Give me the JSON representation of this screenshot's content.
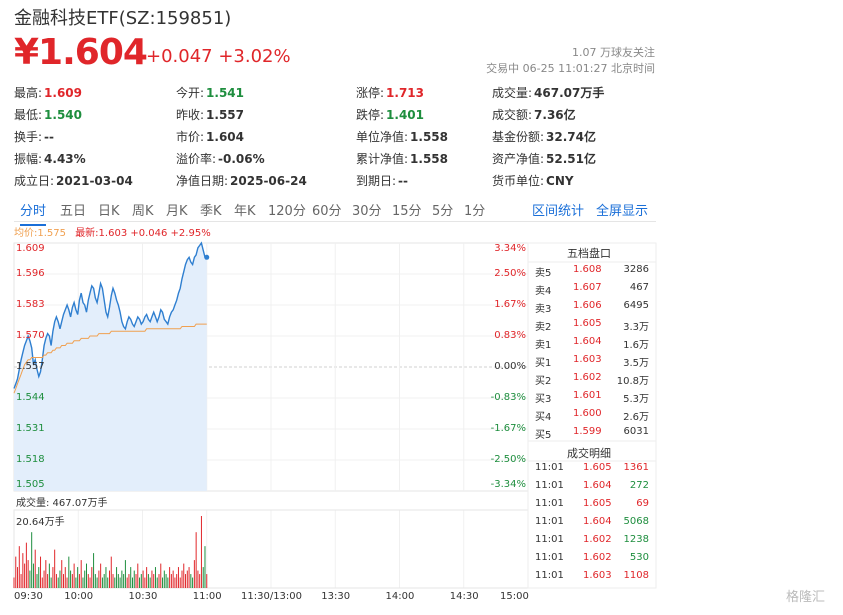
{
  "header": {
    "title": "金融科技ETF(SZ:159851)",
    "price": "¥1.604",
    "change": "+0.047  +3.02%",
    "followers": "1.07 万球友关注",
    "status": "交易中  06-25 11:01:27 北京时间"
  },
  "stats": [
    {
      "label": "最高:",
      "value": "1.609",
      "color": "red"
    },
    {
      "label": "今开:",
      "value": "1.541",
      "color": "green"
    },
    {
      "label": "涨停:",
      "value": "1.713",
      "color": "red"
    },
    {
      "label": "成交量:",
      "value": "467.07万手",
      "color": "normal"
    },
    {
      "label": "最低:",
      "value": "1.540",
      "color": "green"
    },
    {
      "label": "昨收:",
      "value": "1.557",
      "color": "normal"
    },
    {
      "label": "跌停:",
      "value": "1.401",
      "color": "green"
    },
    {
      "label": "成交额:",
      "value": "7.36亿",
      "color": "normal"
    },
    {
      "label": "换手:",
      "value": "--",
      "color": "normal"
    },
    {
      "label": "市价:",
      "value": "1.604",
      "color": "normal"
    },
    {
      "label": "单位净值:",
      "value": "1.558",
      "color": "normal"
    },
    {
      "label": "基金份额:",
      "value": "32.74亿",
      "color": "normal"
    },
    {
      "label": "振幅:",
      "value": "4.43%",
      "color": "normal"
    },
    {
      "label": "溢价率:",
      "value": "-0.06%",
      "color": "normal"
    },
    {
      "label": "累计净值:",
      "value": "1.558",
      "color": "normal"
    },
    {
      "label": "资产净值:",
      "value": "52.51亿",
      "color": "normal"
    },
    {
      "label": "成立日:",
      "value": "2021-03-04",
      "color": "normal"
    },
    {
      "label": "净值日期:",
      "value": "2025-06-24",
      "color": "normal"
    },
    {
      "label": "到期日:",
      "value": "--",
      "color": "normal"
    },
    {
      "label": "货币单位:",
      "value": "CNY",
      "color": "normal"
    }
  ],
  "tabs": [
    "分时",
    "五日",
    "日K",
    "周K",
    "月K",
    "季K",
    "年K",
    "120分",
    "60分",
    "30分",
    "15分",
    "5分",
    "1分"
  ],
  "active_tab": "分时",
  "tab_links": [
    "区间统计",
    "全屏显示"
  ],
  "legend": {
    "avg": "均价:1.575",
    "latest": "最新:1.603 +0.046 +2.95%"
  },
  "chart_data": {
    "type": "line",
    "price_axis": [
      "1.609",
      "1.596",
      "1.583",
      "1.570",
      "1.557",
      "1.544",
      "1.531",
      "1.518",
      "1.505"
    ],
    "pct_axis": [
      "3.34%",
      "2.50%",
      "1.67%",
      "0.83%",
      "0.00%",
      "-0.83%",
      "-1.67%",
      "-2.50%",
      "-3.34%"
    ],
    "ylim": [
      1.505,
      1.609
    ],
    "prev_close": 1.557,
    "volume_label": "成交量: 467.07万手",
    "volume_max_label": "20.64万手",
    "volume_max": 20.64,
    "time_axis": [
      "09:30",
      "10:00",
      "10:30",
      "11:00",
      "11:30/13:00",
      "13:30",
      "14:00",
      "14:30",
      "15:00"
    ],
    "series": [
      {
        "name": "最新",
        "color": "#2f7fd0",
        "values": [
          1.548,
          1.55,
          1.552,
          1.556,
          1.56,
          1.563,
          1.566,
          1.568,
          1.57,
          1.568,
          1.565,
          1.558,
          1.56,
          1.556,
          1.553,
          1.555,
          1.56,
          1.566,
          1.569,
          1.571,
          1.57,
          1.566,
          1.572,
          1.576,
          1.578,
          1.576,
          1.573,
          1.576,
          1.579,
          1.581,
          1.583,
          1.581,
          1.578,
          1.582,
          1.584,
          1.581,
          1.579,
          1.585,
          1.588,
          1.584,
          1.583,
          1.58,
          1.585,
          1.588,
          1.591,
          1.59,
          1.586,
          1.584,
          1.588,
          1.592,
          1.59,
          1.585,
          1.58,
          1.578,
          1.582,
          1.587,
          1.59,
          1.588,
          1.585,
          1.583,
          1.58,
          1.576,
          1.574,
          1.573,
          1.576,
          1.578,
          1.577,
          1.575,
          1.574,
          1.576,
          1.578,
          1.577,
          1.575,
          1.576,
          1.578,
          1.579,
          1.577,
          1.576,
          1.578,
          1.58,
          1.578,
          1.576,
          1.578,
          1.581,
          1.58,
          1.577,
          1.576,
          1.575,
          1.578,
          1.58,
          1.581,
          1.583,
          1.585,
          1.588,
          1.59,
          1.594,
          1.597,
          1.6,
          1.602,
          1.603,
          1.601,
          1.6,
          1.603,
          1.604,
          1.607,
          1.608,
          1.609,
          1.606,
          1.603,
          1.603
        ]
      },
      {
        "name": "均价",
        "color": "#f0a050",
        "values": [
          1.546,
          1.548,
          1.55,
          1.552,
          1.554,
          1.556,
          1.558,
          1.559,
          1.56,
          1.56,
          1.561,
          1.561,
          1.561,
          1.561,
          1.561,
          1.561,
          1.561,
          1.562,
          1.562,
          1.563,
          1.563,
          1.563,
          1.564,
          1.564,
          1.565,
          1.565,
          1.565,
          1.566,
          1.566,
          1.566,
          1.567,
          1.567,
          1.567,
          1.567,
          1.568,
          1.568,
          1.568,
          1.568,
          1.569,
          1.569,
          1.569,
          1.569,
          1.569,
          1.57,
          1.57,
          1.57,
          1.57,
          1.57,
          1.571,
          1.571,
          1.571,
          1.571,
          1.571,
          1.571,
          1.571,
          1.572,
          1.572,
          1.572,
          1.572,
          1.572,
          1.572,
          1.572,
          1.572,
          1.572,
          1.572,
          1.572,
          1.572,
          1.572,
          1.572,
          1.572,
          1.572,
          1.572,
          1.572,
          1.572,
          1.572,
          1.573,
          1.573,
          1.573,
          1.573,
          1.573,
          1.573,
          1.573,
          1.573,
          1.573,
          1.573,
          1.573,
          1.573,
          1.573,
          1.573,
          1.573,
          1.573,
          1.573,
          1.573,
          1.573,
          1.573,
          1.574,
          1.574,
          1.574,
          1.574,
          1.574,
          1.574,
          1.574,
          1.574,
          1.575,
          1.575,
          1.575,
          1.575,
          1.575,
          1.575,
          1.575
        ]
      }
    ],
    "volume": [
      3,
      9,
      6,
      12,
      4,
      10,
      7,
      13,
      8,
      5,
      16,
      7,
      11,
      4,
      6,
      9,
      3,
      5,
      8,
      4,
      7,
      3,
      6,
      11,
      4,
      3,
      5,
      8,
      4,
      6,
      3,
      9,
      5,
      4,
      7,
      3,
      6,
      4,
      8,
      3,
      5,
      7,
      4,
      3,
      6,
      10,
      4,
      3,
      5,
      7,
      3,
      4,
      6,
      3,
      5,
      9,
      4,
      3,
      6,
      4,
      3,
      5,
      4,
      8,
      3,
      4,
      6,
      3,
      5,
      4,
      7,
      3,
      4,
      5,
      3,
      6,
      4,
      3,
      5,
      4,
      6,
      3,
      4,
      7,
      3,
      5,
      4,
      3,
      6,
      4,
      5,
      3,
      4,
      6,
      3,
      5,
      7,
      4,
      5,
      6,
      4,
      3,
      8,
      16,
      5,
      4,
      20.64,
      6,
      12,
      4
    ],
    "volume_colors": "mixed red/green by price direction"
  },
  "order_book": {
    "title": "五档盘口",
    "rows": [
      {
        "label": "卖5",
        "price": "1.608",
        "vol": "3286"
      },
      {
        "label": "卖4",
        "price": "1.607",
        "vol": "467"
      },
      {
        "label": "卖3",
        "price": "1.606",
        "vol": "6495"
      },
      {
        "label": "卖2",
        "price": "1.605",
        "vol": "3.3万"
      },
      {
        "label": "卖1",
        "price": "1.604",
        "vol": "1.6万"
      },
      {
        "label": "买1",
        "price": "1.603",
        "vol": "3.5万"
      },
      {
        "label": "买2",
        "price": "1.602",
        "vol": "10.8万"
      },
      {
        "label": "买3",
        "price": "1.601",
        "vol": "5.3万"
      },
      {
        "label": "买4",
        "price": "1.600",
        "vol": "2.6万"
      },
      {
        "label": "买5",
        "price": "1.599",
        "vol": "6031"
      }
    ]
  },
  "trades": {
    "title": "成交明细",
    "rows": [
      {
        "time": "11:01",
        "price": "1.605",
        "vol": "1361",
        "dir": "buy"
      },
      {
        "time": "11:01",
        "price": "1.604",
        "vol": "272",
        "dir": "sell"
      },
      {
        "time": "11:01",
        "price": "1.605",
        "vol": "69",
        "dir": "buy"
      },
      {
        "time": "11:01",
        "price": "1.604",
        "vol": "5068",
        "dir": "sell"
      },
      {
        "time": "11:01",
        "price": "1.602",
        "vol": "1238",
        "dir": "sell"
      },
      {
        "time": "11:01",
        "price": "1.602",
        "vol": "530",
        "dir": "sell"
      },
      {
        "time": "11:01",
        "price": "1.603",
        "vol": "1108",
        "dir": "buy"
      }
    ]
  },
  "watermark": "格隆汇",
  "colors": {
    "up": "#e0262a",
    "down": "#1e8e3e",
    "accent": "#1a6fd8",
    "price_line": "#2f7fd0",
    "avg_line": "#f0a050"
  }
}
